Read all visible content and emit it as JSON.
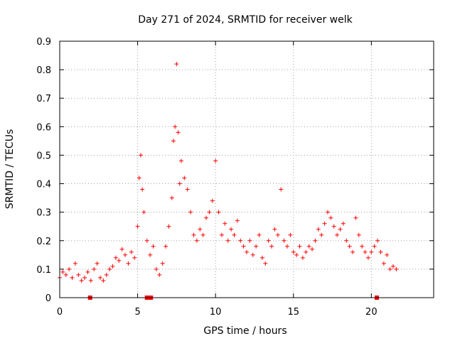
{
  "chart_data": {
    "type": "scatter",
    "title": "Day 271 of 2024, SRMTID for receiver welk",
    "xlabel": "GPS time / hours",
    "ylabel": "SRMTID / TECUs",
    "xlim": [
      0,
      24
    ],
    "ylim": [
      0,
      0.9
    ],
    "xticks": [
      "0",
      "5",
      "10",
      "15",
      "20"
    ],
    "yticks": [
      "0",
      "0.1",
      "0.2",
      "0.3",
      "0.4",
      "0.5",
      "0.6",
      "0.7",
      "0.8",
      "0.9"
    ],
    "grid": true,
    "marker": "+",
    "color": "#ff0000",
    "series": [
      {
        "name": "SRMTID",
        "x": [
          0.0,
          0.2,
          0.4,
          0.6,
          0.8,
          1.0,
          1.2,
          1.4,
          1.6,
          1.8,
          2.0,
          2.2,
          2.4,
          2.6,
          2.8,
          3.0,
          3.2,
          3.4,
          3.6,
          3.8,
          4.0,
          4.2,
          4.4,
          4.6,
          4.8,
          5.0,
          5.1,
          5.2,
          5.3,
          5.4,
          5.6,
          5.8,
          6.0,
          6.2,
          6.4,
          6.6,
          6.8,
          7.0,
          7.2,
          7.3,
          7.4,
          7.5,
          7.6,
          7.7,
          7.8,
          8.0,
          8.2,
          8.4,
          8.6,
          8.8,
          9.0,
          9.2,
          9.4,
          9.6,
          9.8,
          10.0,
          10.2,
          10.4,
          10.6,
          10.8,
          11.0,
          11.2,
          11.4,
          11.6,
          11.8,
          12.0,
          12.2,
          12.4,
          12.6,
          12.8,
          13.0,
          13.2,
          13.4,
          13.6,
          13.8,
          14.0,
          14.2,
          14.4,
          14.6,
          14.8,
          15.0,
          15.2,
          15.4,
          15.6,
          15.8,
          16.0,
          16.2,
          16.4,
          16.6,
          16.8,
          17.0,
          17.2,
          17.4,
          17.6,
          17.8,
          18.0,
          18.2,
          18.4,
          18.6,
          18.8,
          19.0,
          19.2,
          19.4,
          19.6,
          19.8,
          20.0,
          20.2,
          20.4,
          20.6,
          20.8,
          21.0,
          21.2,
          21.4,
          21.6
        ],
        "y": [
          0.07,
          0.09,
          0.08,
          0.1,
          0.07,
          0.12,
          0.08,
          0.06,
          0.07,
          0.09,
          0.06,
          0.1,
          0.12,
          0.07,
          0.06,
          0.08,
          0.1,
          0.11,
          0.14,
          0.13,
          0.17,
          0.15,
          0.12,
          0.16,
          0.14,
          0.25,
          0.42,
          0.5,
          0.38,
          0.3,
          0.2,
          0.15,
          0.18,
          0.1,
          0.08,
          0.12,
          0.18,
          0.25,
          0.35,
          0.55,
          0.6,
          0.82,
          0.58,
          0.4,
          0.48,
          0.42,
          0.38,
          0.3,
          0.22,
          0.2,
          0.24,
          0.22,
          0.28,
          0.3,
          0.34,
          0.48,
          0.3,
          0.22,
          0.26,
          0.2,
          0.24,
          0.22,
          0.27,
          0.2,
          0.18,
          0.16,
          0.2,
          0.15,
          0.18,
          0.22,
          0.14,
          0.12,
          0.2,
          0.18,
          0.24,
          0.22,
          0.38,
          0.2,
          0.18,
          0.22,
          0.16,
          0.15,
          0.18,
          0.14,
          0.16,
          0.18,
          0.17,
          0.2,
          0.24,
          0.22,
          0.26,
          0.3,
          0.28,
          0.25,
          0.22,
          0.24,
          0.26,
          0.2,
          0.18,
          0.16,
          0.28,
          0.22,
          0.18,
          0.16,
          0.14,
          0.16,
          0.18,
          0.2,
          0.16,
          0.12,
          0.15,
          0.1,
          0.11,
          0.1
        ]
      }
    ],
    "gap_markers_x": [
      1.95,
      5.6,
      5.85,
      20.35
    ]
  }
}
